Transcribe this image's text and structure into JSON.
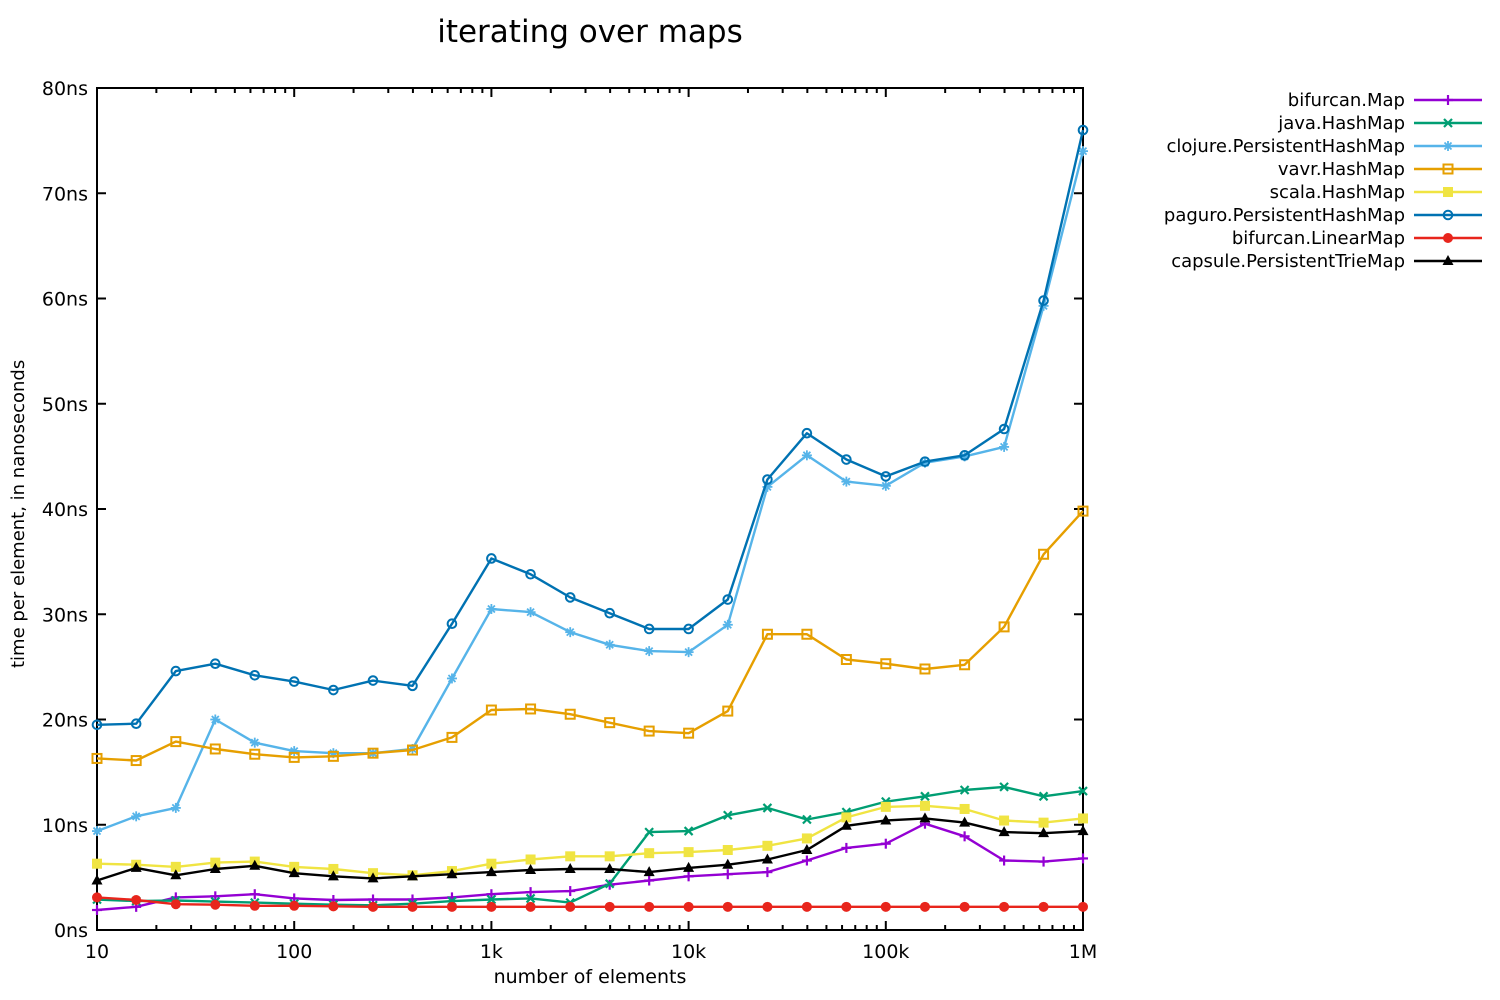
{
  "title": "iterating over maps",
  "x_axis": {
    "label": "number of elements",
    "scale": "log",
    "range": [
      10,
      1000000
    ],
    "tick_values": [
      10,
      100,
      1000,
      10000,
      100000,
      1000000
    ],
    "tick_labels": [
      "10",
      "100",
      "1k",
      "10k",
      "100k",
      "1M"
    ]
  },
  "y_axis": {
    "label": "time per element, in nanoseconds",
    "scale": "linear",
    "range": [
      0,
      80
    ],
    "tick_values": [
      0,
      10,
      20,
      30,
      40,
      50,
      60,
      70,
      80
    ],
    "tick_labels": [
      "0ns",
      "10ns",
      "20ns",
      "30ns",
      "40ns",
      "50ns",
      "60ns",
      "70ns",
      "80ns"
    ]
  },
  "chart_data": {
    "type": "line",
    "grid": false,
    "legend_position": "top-right-outside",
    "x": [
      10,
      15.8,
      25.1,
      39.8,
      63.1,
      100,
      158,
      251,
      398,
      631,
      1000,
      1580,
      2510,
      3980,
      6310,
      10000,
      15800,
      25100,
      39800,
      63100,
      100000,
      158000,
      251000,
      398000,
      631000,
      1000000
    ],
    "series": [
      {
        "name": "bifurcan.Map",
        "color": "#9400d3",
        "marker": "plus",
        "values": [
          1.9,
          2.2,
          3.1,
          3.2,
          3.4,
          3.0,
          2.85,
          2.9,
          2.9,
          3.1,
          3.4,
          3.6,
          3.7,
          4.3,
          4.7,
          5.1,
          5.3,
          5.5,
          6.6,
          7.8,
          8.2,
          10.1,
          8.9,
          6.6,
          6.5,
          6.8
        ]
      },
      {
        "name": "java.HashMap",
        "color": "#009e73",
        "marker": "cross",
        "values": [
          2.9,
          2.75,
          2.8,
          2.7,
          2.6,
          2.5,
          2.4,
          2.35,
          2.5,
          2.75,
          2.9,
          3.0,
          2.6,
          4.4,
          9.3,
          9.4,
          10.9,
          11.6,
          10.5,
          11.2,
          12.2,
          12.7,
          13.3,
          13.6,
          12.7,
          13.2
        ]
      },
      {
        "name": "clojure.PersistentHashMap",
        "color": "#56b4e9",
        "marker": "asterisk",
        "values": [
          9.4,
          10.8,
          11.6,
          20.0,
          17.8,
          17.0,
          16.8,
          16.8,
          17.2,
          23.9,
          30.5,
          30.2,
          28.3,
          27.1,
          26.5,
          26.4,
          29.0,
          42.1,
          45.1,
          42.6,
          42.2,
          44.4,
          45.0,
          45.9,
          59.3,
          74.0
        ]
      },
      {
        "name": "vavr.HashMap",
        "color": "#e69f00",
        "marker": "square-open",
        "values": [
          16.3,
          16.1,
          17.9,
          17.2,
          16.7,
          16.4,
          16.5,
          16.8,
          17.1,
          18.3,
          20.9,
          21.0,
          20.5,
          19.7,
          18.9,
          18.7,
          20.8,
          28.1,
          28.1,
          25.7,
          25.3,
          24.8,
          25.2,
          28.8,
          35.7,
          39.8
        ]
      },
      {
        "name": "scala.HashMap",
        "color": "#f0e442",
        "marker": "square-filled",
        "values": [
          6.3,
          6.2,
          6.0,
          6.4,
          6.5,
          6.0,
          5.8,
          5.4,
          5.2,
          5.6,
          6.3,
          6.7,
          7.0,
          7.0,
          7.3,
          7.4,
          7.6,
          8.0,
          8.7,
          10.7,
          11.7,
          11.8,
          11.5,
          10.4,
          10.2,
          10.6
        ]
      },
      {
        "name": "paguro.PersistentHashMap",
        "color": "#0072b2",
        "marker": "circle-open",
        "values": [
          19.5,
          19.6,
          24.6,
          25.3,
          24.2,
          23.6,
          22.8,
          23.7,
          23.2,
          29.1,
          35.3,
          33.8,
          31.6,
          30.1,
          28.6,
          28.6,
          31.4,
          42.8,
          47.2,
          44.7,
          43.1,
          44.5,
          45.1,
          47.6,
          59.8,
          76.0
        ]
      },
      {
        "name": "bifurcan.LinearMap",
        "color": "#e8251c",
        "marker": "circle-filled",
        "values": [
          3.1,
          2.85,
          2.45,
          2.4,
          2.3,
          2.3,
          2.25,
          2.2,
          2.2,
          2.2,
          2.2,
          2.2,
          2.2,
          2.2,
          2.2,
          2.2,
          2.2,
          2.2,
          2.2,
          2.2,
          2.2,
          2.2,
          2.2,
          2.2,
          2.2,
          2.2
        ]
      },
      {
        "name": "capsule.PersistentTrieMap",
        "color": "#000000",
        "marker": "triangle-filled",
        "values": [
          4.7,
          5.9,
          5.2,
          5.8,
          6.1,
          5.4,
          5.1,
          4.9,
          5.1,
          5.3,
          5.5,
          5.7,
          5.8,
          5.8,
          5.5,
          5.9,
          6.2,
          6.7,
          7.6,
          9.9,
          10.4,
          10.6,
          10.2,
          9.3,
          9.2,
          9.4
        ]
      }
    ]
  }
}
